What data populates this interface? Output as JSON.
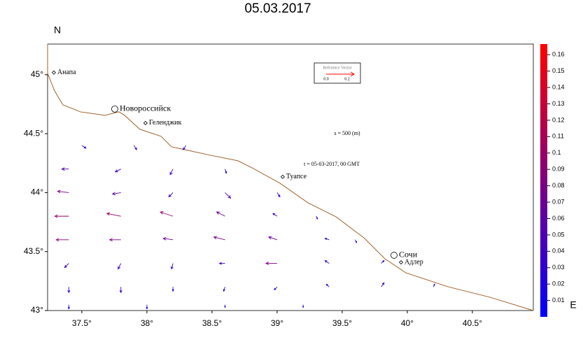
{
  "chart_data": {
    "type": "quiver",
    "title": "05.03.2017",
    "y_label": "N",
    "x_label": "E",
    "xlim": [
      37.237,
      40.968
    ],
    "ylim": [
      43,
      45.26
    ],
    "xticks": [
      {
        "value": 37.5,
        "label": "37.5°"
      },
      {
        "value": 38,
        "label": "38°"
      },
      {
        "value": 38.5,
        "label": "38.5°"
      },
      {
        "value": 39,
        "label": "39°"
      },
      {
        "value": 39.5,
        "label": "39.5°"
      },
      {
        "value": 40,
        "label": "40°"
      },
      {
        "value": 40.5,
        "label": "40.5°"
      }
    ],
    "yticks": [
      {
        "value": 43,
        "label": "43°"
      },
      {
        "value": 43.5,
        "label": "43.5°"
      },
      {
        "value": 44,
        "label": "44°"
      },
      {
        "value": 44.5,
        "label": "44.5°"
      },
      {
        "value": 45,
        "label": "45°"
      }
    ],
    "colorbar": {
      "clim": [
        0,
        0.1665
      ],
      "colors": [
        "#0000ff",
        "#ff0000"
      ],
      "ticks": [
        0.01,
        0.02,
        0.03,
        0.04,
        0.05,
        0.06,
        0.07,
        0.08,
        0.09,
        0.1,
        0.11,
        0.12,
        0.13,
        0.14,
        0.15,
        0.16
      ]
    },
    "coastline": {
      "color": "#a0622d",
      "lon": [
        37.237,
        37.237,
        37.29,
        37.355,
        37.489,
        37.677,
        37.785,
        37.828,
        37.946,
        38.108,
        38.188,
        38.484,
        38.699,
        38.806,
        39.022,
        39.237,
        39.452,
        39.667,
        39.828,
        39.989,
        40.312,
        40.634,
        40.968
      ],
      "lat": [
        45.261,
        45.012,
        44.864,
        44.745,
        44.685,
        44.656,
        44.685,
        44.656,
        44.537,
        44.478,
        44.389,
        44.318,
        44.27,
        44.211,
        44.08,
        43.914,
        43.795,
        43.617,
        43.439,
        43.32,
        43.202,
        43.113,
        43.0
      ]
    },
    "cities": {
      "names": [
        "Анапа",
        "Новороссийск",
        "Геленджик",
        "Туапсе",
        "Сочи",
        "Адлер"
      ],
      "lon": [
        37.285,
        37.753,
        37.989,
        39.043,
        39.898,
        39.952
      ],
      "lat": [
        45.018,
        44.709,
        44.59,
        44.134,
        43.469,
        43.409
      ],
      "marker": [
        "diamond",
        "circle",
        "diamond",
        "diamond",
        "circle",
        "diamond"
      ]
    },
    "reference_vector": {
      "title": "Reference Vector",
      "color": "#ff0000",
      "ticks": [
        {
          "value": 0,
          "label": "0.0"
        },
        0.2
      ]
    },
    "annotations": [
      "s = 500 (m)",
      "t = 05-03-2017, 00 GMT"
    ],
    "vectors": {
      "x": [
        37.5,
        37.9,
        38.3,
        37.4,
        37.8,
        38.2,
        38.6,
        37.4,
        37.8,
        38.2,
        38.6,
        39.0,
        37.4,
        37.8,
        38.2,
        38.6,
        39.0,
        39.3,
        37.4,
        37.8,
        38.2,
        38.6,
        39.0,
        39.4,
        39.6,
        37.4,
        37.8,
        38.2,
        38.6,
        39.0,
        39.4,
        39.8,
        37.4,
        37.8,
        38.2,
        38.6,
        39.0,
        39.4,
        39.8,
        40.2,
        37.4,
        38.0,
        38.6,
        39.2
      ],
      "y": [
        44.4,
        44.4,
        44.4,
        44.2,
        44.2,
        44.2,
        44.2,
        44.0,
        44.0,
        44.0,
        44.0,
        44.0,
        43.8,
        43.8,
        43.8,
        43.8,
        43.8,
        43.8,
        43.6,
        43.6,
        43.6,
        43.6,
        43.6,
        43.6,
        43.6,
        43.4,
        43.4,
        43.4,
        43.4,
        43.4,
        43.4,
        43.4,
        43.2,
        43.2,
        43.2,
        43.2,
        43.2,
        43.2,
        43.2,
        43.2,
        43.05,
        43.05,
        43.05,
        43.05
      ],
      "u": [
        0.03,
        0.02,
        -0.02,
        -0.05,
        -0.04,
        -0.02,
        0.01,
        -0.08,
        -0.06,
        -0.03,
        0.04,
        0.02,
        -0.1,
        -0.1,
        -0.09,
        -0.06,
        -0.03,
        0.01,
        -0.09,
        -0.08,
        -0.07,
        -0.08,
        -0.06,
        -0.03,
        0.01,
        -0.03,
        -0.02,
        -0.01,
        -0.04,
        -0.08,
        -0.03,
        0.02,
        0,
        0,
        0,
        -0.01,
        -0.02,
        -0.02,
        0.02,
        0.01,
        0,
        0,
        0,
        0
      ],
      "v": [
        -0.02,
        -0.03,
        -0.03,
        0,
        -0.02,
        -0.04,
        -0.03,
        0.01,
        -0.01,
        -0.03,
        -0.04,
        -0.03,
        0,
        0.02,
        0.03,
        0.03,
        0.02,
        -0.02,
        0,
        0,
        0.01,
        0.02,
        0.02,
        0.01,
        -0.02,
        -0.03,
        -0.04,
        -0.04,
        0,
        0,
        0.02,
        0.02,
        -0.04,
        -0.04,
        -0.03,
        -0.03,
        -0.02,
        0.02,
        0.03,
        0.02,
        -0.03,
        -0.03,
        -0.02,
        -0.02
      ]
    }
  }
}
